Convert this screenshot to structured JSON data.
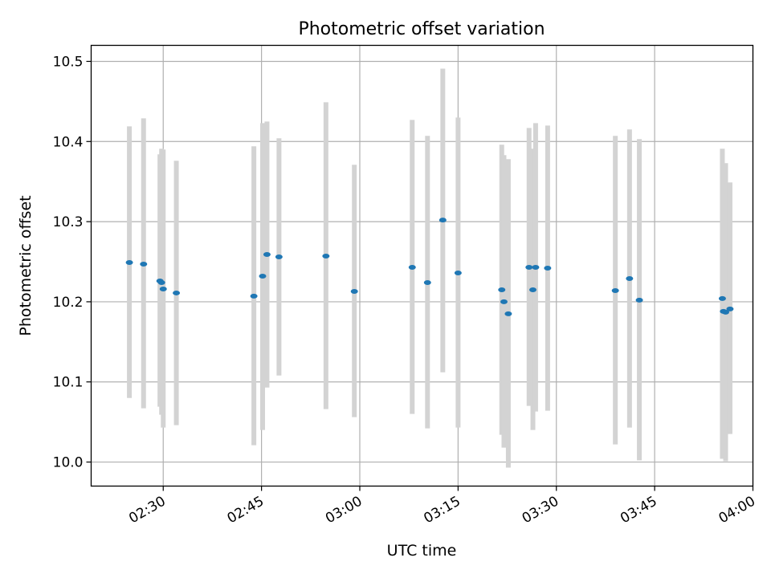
{
  "chart_data": {
    "type": "scatter",
    "title": "Photometric offset variation",
    "xlabel": "UTC time",
    "ylabel": "Photometric offset",
    "grid": true,
    "xlim": [
      "02:19:00",
      "04:00:00"
    ],
    "ylim": [
      9.97,
      10.52
    ],
    "xticks": [
      "02:30",
      "02:45",
      "03:00",
      "03:15",
      "03:30",
      "03:45",
      "04:00"
    ],
    "yticks": [
      10.0,
      10.1,
      10.2,
      10.3,
      10.4,
      10.5
    ],
    "marker_color": "#1f77b4",
    "errorbar_color": "#d3d3d3",
    "points": [
      {
        "x": "02:24:50",
        "y": 10.249,
        "lo": 10.08,
        "hi": 10.419
      },
      {
        "x": "02:27:00",
        "y": 10.247,
        "lo": 10.067,
        "hi": 10.429
      },
      {
        "x": "02:29:30",
        "y": 10.226,
        "lo": 10.069,
        "hi": 10.384
      },
      {
        "x": "02:29:45",
        "y": 10.224,
        "lo": 10.059,
        "hi": 10.391
      },
      {
        "x": "02:30:00",
        "y": 10.216,
        "lo": 10.043,
        "hi": 10.39
      },
      {
        "x": "02:32:00",
        "y": 10.211,
        "lo": 10.046,
        "hi": 10.376
      },
      {
        "x": "02:43:50",
        "y": 10.207,
        "lo": 10.021,
        "hi": 10.394
      },
      {
        "x": "02:45:10",
        "y": 10.232,
        "lo": 10.04,
        "hi": 10.423
      },
      {
        "x": "02:45:50",
        "y": 10.259,
        "lo": 10.093,
        "hi": 10.425
      },
      {
        "x": "02:47:40",
        "y": 10.256,
        "lo": 10.108,
        "hi": 10.404
      },
      {
        "x": "02:54:50",
        "y": 10.257,
        "lo": 10.066,
        "hi": 10.449
      },
      {
        "x": "02:59:10",
        "y": 10.213,
        "lo": 10.056,
        "hi": 10.371
      },
      {
        "x": "03:08:00",
        "y": 10.243,
        "lo": 10.06,
        "hi": 10.427
      },
      {
        "x": "03:10:20",
        "y": 10.224,
        "lo": 10.042,
        "hi": 10.407
      },
      {
        "x": "03:12:40",
        "y": 10.302,
        "lo": 10.112,
        "hi": 10.491
      },
      {
        "x": "03:15:00",
        "y": 10.236,
        "lo": 10.043,
        "hi": 10.43
      },
      {
        "x": "03:21:40",
        "y": 10.215,
        "lo": 10.034,
        "hi": 10.396
      },
      {
        "x": "03:22:00",
        "y": 10.2,
        "lo": 10.018,
        "hi": 10.383
      },
      {
        "x": "03:22:40",
        "y": 10.185,
        "lo": 9.993,
        "hi": 10.378
      },
      {
        "x": "03:25:50",
        "y": 10.243,
        "lo": 10.07,
        "hi": 10.417
      },
      {
        "x": "03:26:25",
        "y": 10.215,
        "lo": 10.04,
        "hi": 10.391
      },
      {
        "x": "03:26:50",
        "y": 10.243,
        "lo": 10.063,
        "hi": 10.423
      },
      {
        "x": "03:28:40",
        "y": 10.242,
        "lo": 10.064,
        "hi": 10.42
      },
      {
        "x": "03:39:00",
        "y": 10.214,
        "lo": 10.022,
        "hi": 10.407
      },
      {
        "x": "03:41:10",
        "y": 10.229,
        "lo": 10.043,
        "hi": 10.415
      },
      {
        "x": "03:42:40",
        "y": 10.202,
        "lo": 10.002,
        "hi": 10.403
      },
      {
        "x": "03:55:20",
        "y": 10.204,
        "lo": 10.004,
        "hi": 10.391
      },
      {
        "x": "03:55:30",
        "y": 10.188,
        "lo": 10.004,
        "hi": 10.37
      },
      {
        "x": "03:55:50",
        "y": 10.187,
        "lo": 10.001,
        "hi": 10.373
      },
      {
        "x": "03:56:30",
        "y": 10.191,
        "lo": 10.035,
        "hi": 10.349
      }
    ]
  }
}
